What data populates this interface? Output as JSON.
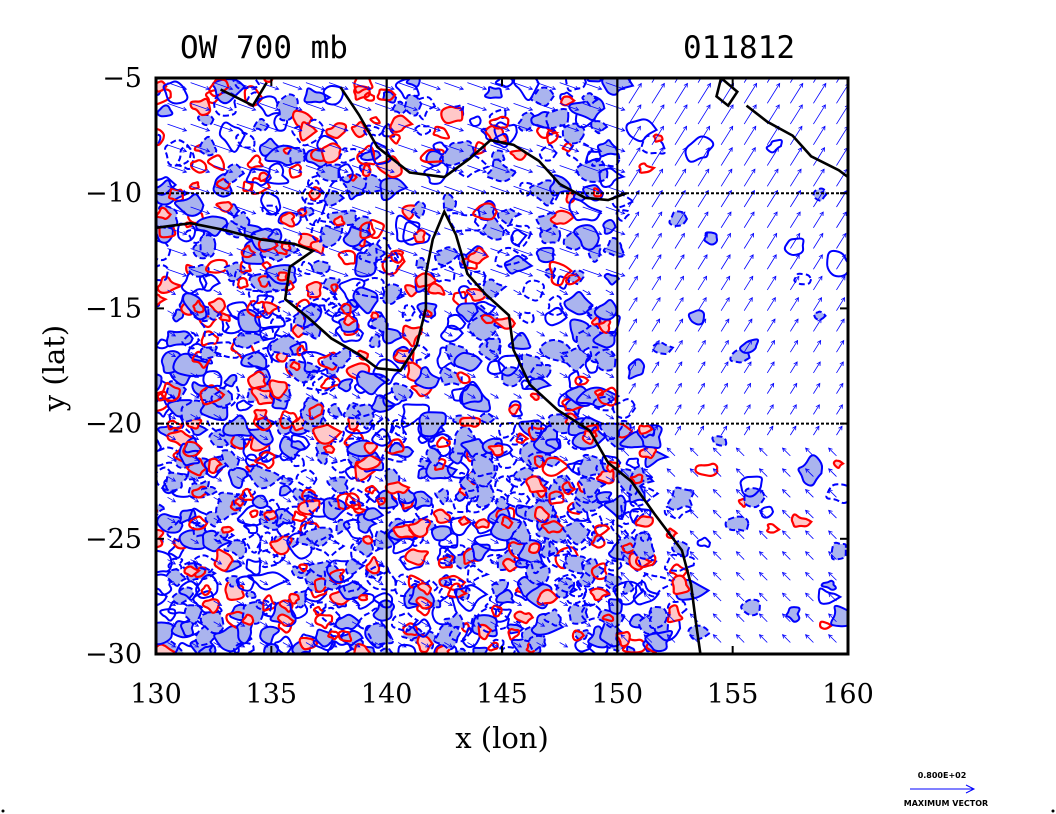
{
  "chart_data": {
    "type": "contour",
    "title": "OW 700 mb",
    "title_right": "011812",
    "xlabel": "x (lon)",
    "ylabel": "y (lat)",
    "xlim": [
      130,
      160
    ],
    "ylim": [
      -30,
      -5
    ],
    "xticks": [
      130,
      135,
      140,
      145,
      150,
      155,
      160
    ],
    "yticks": [
      -5,
      -10,
      -15,
      -20,
      -25,
      -30
    ],
    "xtick_labels": [
      "130",
      "135",
      "140",
      "145",
      "150",
      "155",
      "160"
    ],
    "ytick_labels": [
      "−5",
      "−10",
      "−15",
      "−20",
      "−25",
      "−30"
    ],
    "grid_lon": [
      140,
      150
    ],
    "grid_lat": [
      -10,
      -20
    ],
    "colors": {
      "positive_contour": "#ff0000",
      "positive_fill": "#ffc8c8",
      "negative_contour": "#0000ff",
      "negative_fill": "#aab4ee",
      "vector": "#0000ff",
      "coastline": "#000000"
    },
    "vector_legend": {
      "value_label": "0.800E+02",
      "caption": "MAXIMUM VECTOR"
    }
  }
}
